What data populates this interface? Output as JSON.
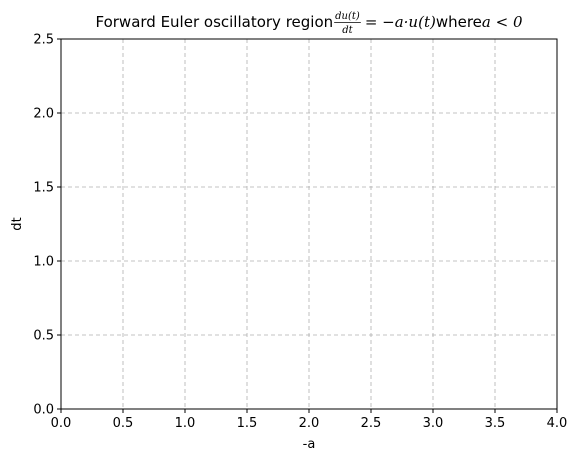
{
  "chart_data": {
    "type": "line",
    "title_prefix": "Forward Euler oscillatory region ",
    "title_frac_numerator": "du(t)",
    "title_frac_denominator": "dt",
    "title_equation": "= −a·u(t)",
    "title_where": " where ",
    "title_condition": "a < 0",
    "xlabel": "-a",
    "ylabel": "dt",
    "xlim": [
      0.0,
      4.0
    ],
    "ylim": [
      0.0,
      2.5
    ],
    "xticks": [
      0.0,
      0.5,
      1.0,
      1.5,
      2.0,
      2.5,
      3.0,
      3.5,
      4.0
    ],
    "xtick_labels": [
      "0.0",
      "0.5",
      "1.0",
      "1.5",
      "2.0",
      "2.5",
      "3.0",
      "3.5",
      "4.0"
    ],
    "yticks": [
      0.0,
      0.5,
      1.0,
      1.5,
      2.0,
      2.5
    ],
    "ytick_labels": [
      "0.0",
      "0.5",
      "1.0",
      "1.5",
      "2.0",
      "2.5"
    ],
    "grid": true,
    "grid_style": "dashed",
    "grid_color": "#b0b0b0",
    "series": []
  }
}
